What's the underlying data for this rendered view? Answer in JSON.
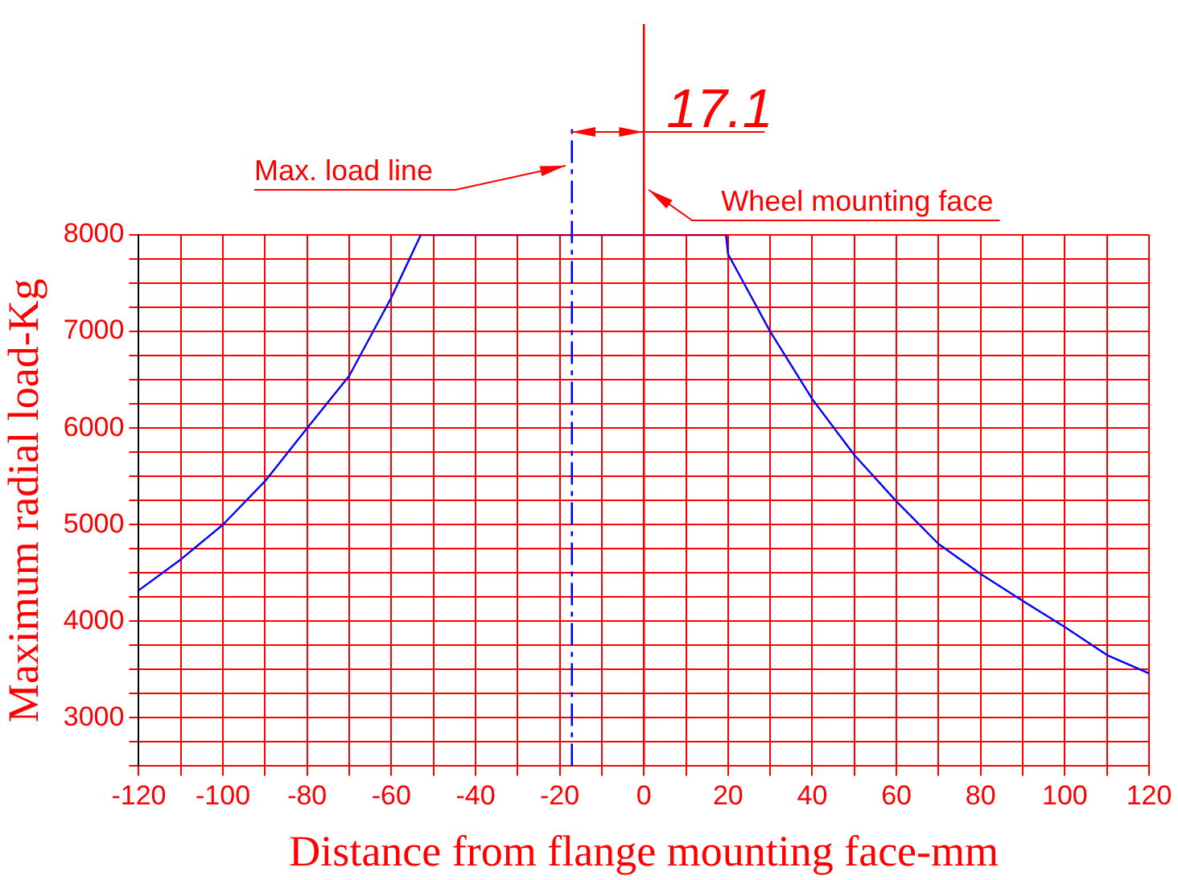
{
  "chart_data": {
    "type": "line",
    "xlabel": "Distance from flange mounting face-mm",
    "ylabel": "Maximum radial load-Kg",
    "x": [
      -120,
      -110,
      -100,
      -90,
      -80,
      -70,
      -60,
      -53,
      19.5,
      20,
      30,
      40,
      50,
      60,
      70,
      80,
      90,
      100,
      110,
      120
    ],
    "series": [
      {
        "color": "#0000ff",
        "values": [
          4320,
          4640,
          5000,
          5450,
          6000,
          6540,
          7350,
          8000,
          8000,
          7800,
          7000,
          6300,
          5720,
          5240,
          4800,
          4490,
          4210,
          3940,
          3650,
          3460
        ]
      }
    ],
    "xlim": [
      -120,
      120
    ],
    "ylim": [
      2500,
      8000
    ],
    "xticks": [
      -120,
      {
        "value": -110,
        "label": null
      },
      -100,
      {
        "value": -90,
        "label": null
      },
      -80,
      {
        "value": -70,
        "label": null
      },
      -60,
      {
        "value": -50,
        "label": null
      },
      -40,
      {
        "value": -30,
        "label": null
      },
      -20,
      {
        "value": -10,
        "label": null
      },
      0,
      {
        "value": 10,
        "label": null
      },
      20,
      {
        "value": 30,
        "label": null
      },
      40,
      {
        "value": 50,
        "label": null
      },
      60,
      {
        "value": 70,
        "label": null
      },
      80,
      {
        "value": 90,
        "label": null
      },
      100,
      {
        "value": 110,
        "label": null
      },
      120
    ],
    "yticks": [
      {
        "value": 2500,
        "label": null
      },
      {
        "value": 2750,
        "label": null
      },
      3000,
      {
        "value": 3250,
        "label": null
      },
      {
        "value": 3500,
        "label": null
      },
      {
        "value": 3750,
        "label": null
      },
      4000,
      {
        "value": 4250,
        "label": null
      },
      {
        "value": 4500,
        "label": null
      },
      {
        "value": 4750,
        "label": null
      },
      5000,
      {
        "value": 5250,
        "label": null
      },
      {
        "value": 5500,
        "label": null
      },
      {
        "value": 5750,
        "label": null
      },
      6000,
      {
        "value": 6250,
        "label": null
      },
      {
        "value": 6500,
        "label": null
      },
      {
        "value": 6750,
        "label": null
      },
      7000,
      {
        "value": 7250,
        "label": null
      },
      {
        "value": 7500,
        "label": null
      },
      {
        "value": 7750,
        "label": null
      },
      8000
    ],
    "grid": true,
    "legend": false,
    "marker": "none",
    "line_style": "solid",
    "ref_lines": [
      {
        "axis": "x",
        "value": -17.1,
        "label": "Max. load line",
        "color": "#0000ff",
        "line_style": "dashed"
      },
      {
        "axis": "x",
        "value": 0,
        "label": "Wheel mounting face",
        "color": "#ff0000",
        "line_style": "solid"
      }
    ],
    "annotations": [
      "17.1"
    ]
  }
}
